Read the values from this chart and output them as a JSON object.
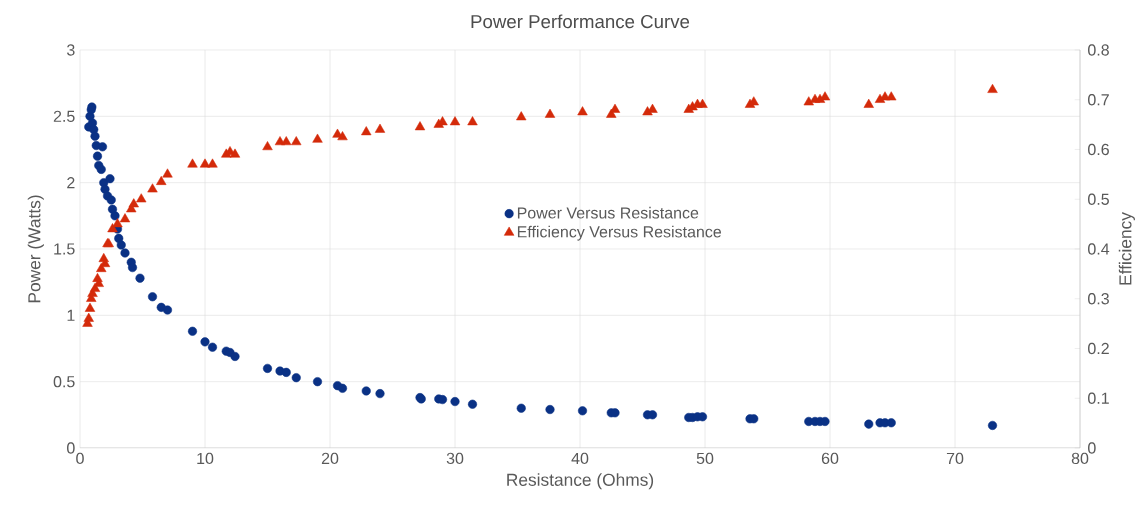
{
  "chart_data": {
    "type": "scatter",
    "title": "Power Performance Curve",
    "xlabel": "Resistance (Ohms)",
    "ylabel": "Power (Watts)",
    "y2label": "Efficiency",
    "xlim": [
      0,
      80
    ],
    "xticks": [
      0,
      10,
      20,
      30,
      40,
      50,
      60,
      70,
      80
    ],
    "ylim": [
      0,
      3
    ],
    "yticks": [
      0,
      0.5,
      1,
      1.5,
      2,
      2.5,
      3
    ],
    "y2lim": [
      0,
      0.8
    ],
    "y2ticks": [
      0,
      0.1,
      0.2,
      0.3,
      0.4,
      0.5,
      0.6,
      0.7,
      0.8
    ],
    "grid": true,
    "legend": "center",
    "series": [
      {
        "name": "Power Versus Resistance",
        "color": "#0a3185",
        "marker": "circle",
        "x": [
          0.7,
          0.8,
          0.9,
          0.95,
          1.0,
          1.1,
          1.2,
          1.3,
          1.4,
          1.5,
          1.7,
          1.8,
          1.9,
          2.0,
          2.2,
          2.4,
          2.5,
          2.6,
          2.8,
          3.0,
          3.1,
          3.3,
          3.6,
          4.1,
          4.2,
          4.8,
          5.8,
          6.5,
          7.0,
          9.0,
          10.0,
          10.6,
          11.7,
          12.0,
          12.4,
          15,
          16,
          16.5,
          17.3,
          19,
          20.6,
          21,
          22.9,
          24,
          27.2,
          27.3,
          28.7,
          29,
          30,
          31.4,
          35.3,
          37.6,
          40.2,
          42.5,
          42.8,
          45.4,
          45.8,
          48.7,
          49,
          49.4,
          49.8,
          53.6,
          53.9,
          58.3,
          58.8,
          59.2,
          59.6,
          63.1,
          64,
          64.4,
          64.9,
          73
        ],
        "values": [
          2.42,
          2.5,
          2.55,
          2.57,
          2.45,
          2.4,
          2.35,
          2.28,
          2.2,
          2.13,
          2.1,
          2.27,
          2.0,
          1.95,
          1.9,
          2.03,
          1.87,
          1.8,
          1.75,
          1.65,
          1.58,
          1.53,
          1.47,
          1.4,
          1.36,
          1.28,
          1.14,
          1.06,
          1.04,
          0.88,
          0.8,
          0.76,
          0.73,
          0.72,
          0.69,
          0.6,
          0.58,
          0.57,
          0.53,
          0.5,
          0.47,
          0.45,
          0.43,
          0.41,
          0.38,
          0.37,
          0.37,
          0.365,
          0.35,
          0.33,
          0.3,
          0.29,
          0.28,
          0.265,
          0.265,
          0.25,
          0.25,
          0.23,
          0.23,
          0.235,
          0.235,
          0.22,
          0.22,
          0.2,
          0.2,
          0.2,
          0.2,
          0.18,
          0.19,
          0.19,
          0.19,
          0.17
        ]
      },
      {
        "name": "Efficiency Versus Resistance",
        "color": "#d42a0a",
        "marker": "triangle",
        "axis": "y2",
        "x": [
          0.6,
          0.7,
          0.8,
          0.9,
          1.0,
          1.2,
          1.4,
          1.5,
          1.7,
          1.9,
          2.0,
          2.2,
          2.3,
          2.6,
          3,
          3.6,
          4.1,
          4.3,
          4.9,
          5.8,
          6.5,
          7,
          9,
          10,
          10.6,
          11.7,
          12,
          12.4,
          15,
          16,
          16.5,
          17.3,
          19,
          20.6,
          21,
          22.9,
          24,
          27.2,
          28.7,
          29,
          30,
          31.4,
          35.3,
          37.6,
          40.2,
          42.5,
          42.8,
          45.4,
          45.8,
          48.7,
          49,
          49.4,
          49.8,
          53.6,
          53.9,
          58.3,
          58.8,
          59.2,
          59.6,
          63.1,
          64,
          64.4,
          64.9,
          73
        ],
        "values": [
          0.25,
          0.26,
          0.28,
          0.3,
          0.31,
          0.32,
          0.34,
          0.33,
          0.36,
          0.38,
          0.37,
          0.41,
          0.41,
          0.44,
          0.45,
          0.46,
          0.48,
          0.49,
          0.5,
          0.52,
          0.535,
          0.55,
          0.57,
          0.57,
          0.57,
          0.59,
          0.595,
          0.59,
          0.605,
          0.615,
          0.615,
          0.615,
          0.62,
          0.63,
          0.625,
          0.635,
          0.64,
          0.645,
          0.65,
          0.655,
          0.655,
          0.655,
          0.665,
          0.67,
          0.675,
          0.67,
          0.68,
          0.675,
          0.68,
          0.68,
          0.685,
          0.69,
          0.69,
          0.69,
          0.695,
          0.695,
          0.7,
          0.7,
          0.705,
          0.69,
          0.7,
          0.705,
          0.705,
          0.72
        ]
      }
    ]
  }
}
